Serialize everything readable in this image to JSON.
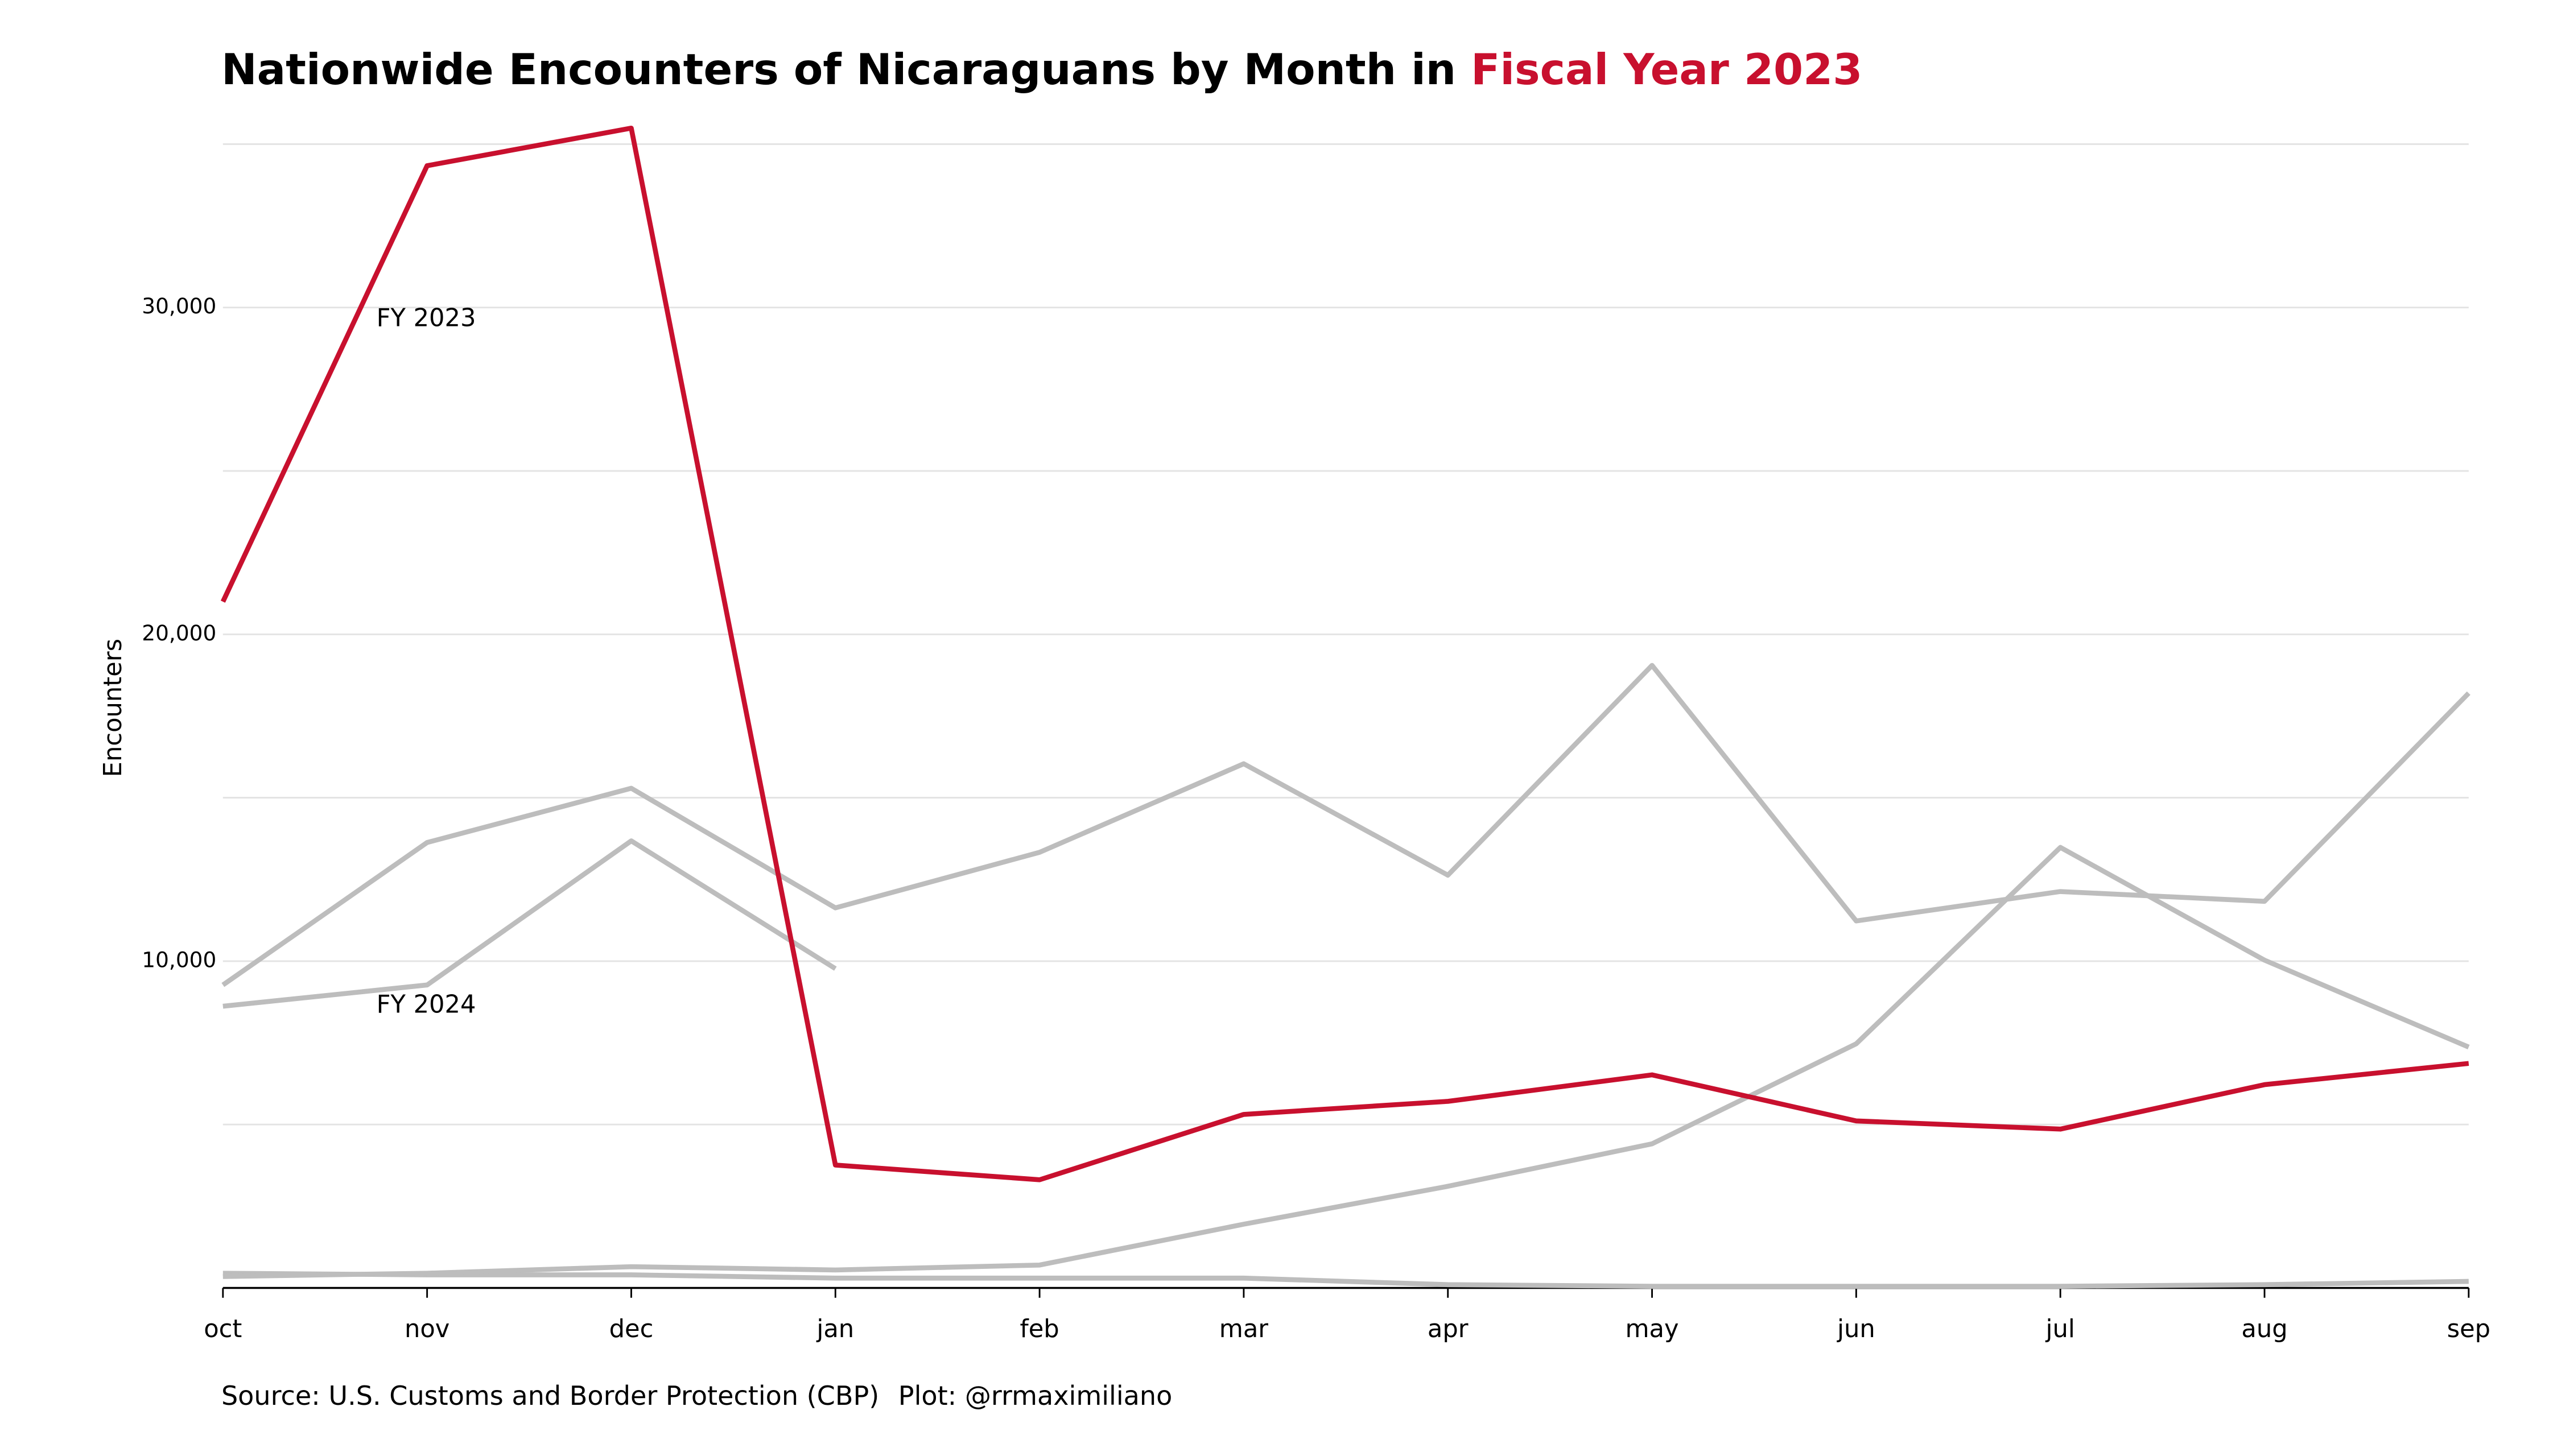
{
  "chart_data": {
    "type": "line",
    "title": "Nationwide Encounters of Nicaraguans by Month in",
    "title_highlight": "Fiscal Year 2023",
    "title_highlight_color": "#c8102e",
    "y_label": "Encounters",
    "source": "Source: U.S. Customs and Border Protection (CBP)",
    "credit": "Plot: @rrmaximiliano",
    "categories": [
      "oct",
      "nov",
      "dec",
      "jan",
      "feb",
      "mar",
      "apr",
      "may",
      "jun",
      "jul",
      "aug",
      "sep"
    ],
    "ylim": [
      0,
      35500
    ],
    "yticks": [
      {
        "value": 10000,
        "label": "10,000"
      },
      {
        "value": 20000,
        "label": "20,000"
      },
      {
        "value": 30000,
        "label": "30,000"
      }
    ],
    "minor_yticks": [
      5000,
      15000,
      25000,
      35000
    ],
    "grid": true,
    "series": [
      {
        "color": "#bdbdbd",
        "values": [
          450,
          400,
          400,
          300,
          300,
          300,
          100,
          50,
          50,
          50,
          100,
          200
        ]
      },
      {
        "color": "#bdbdbd",
        "values": [
          350,
          450,
          650,
          550,
          700,
          1950,
          3110,
          4410,
          7470,
          13480,
          10030,
          7370
        ]
      },
      {
        "color": "#bdbdbd",
        "values": [
          9270,
          13630,
          15290,
          11630,
          13330,
          16040,
          12630,
          19050,
          11230,
          12130,
          11830,
          18200
        ]
      },
      {
        "name": "FY 2024",
        "color": "#bdbdbd",
        "values": [
          8620,
          9270,
          13680,
          9770,
          null,
          null,
          null,
          null,
          null,
          null,
          null,
          null
        ]
      },
      {
        "name": "FY 2023",
        "color": "#c8102e",
        "values": [
          21000,
          34340,
          35490,
          3760,
          3310,
          5310,
          5710,
          6520,
          5110,
          4860,
          6220,
          6870
        ]
      }
    ]
  }
}
